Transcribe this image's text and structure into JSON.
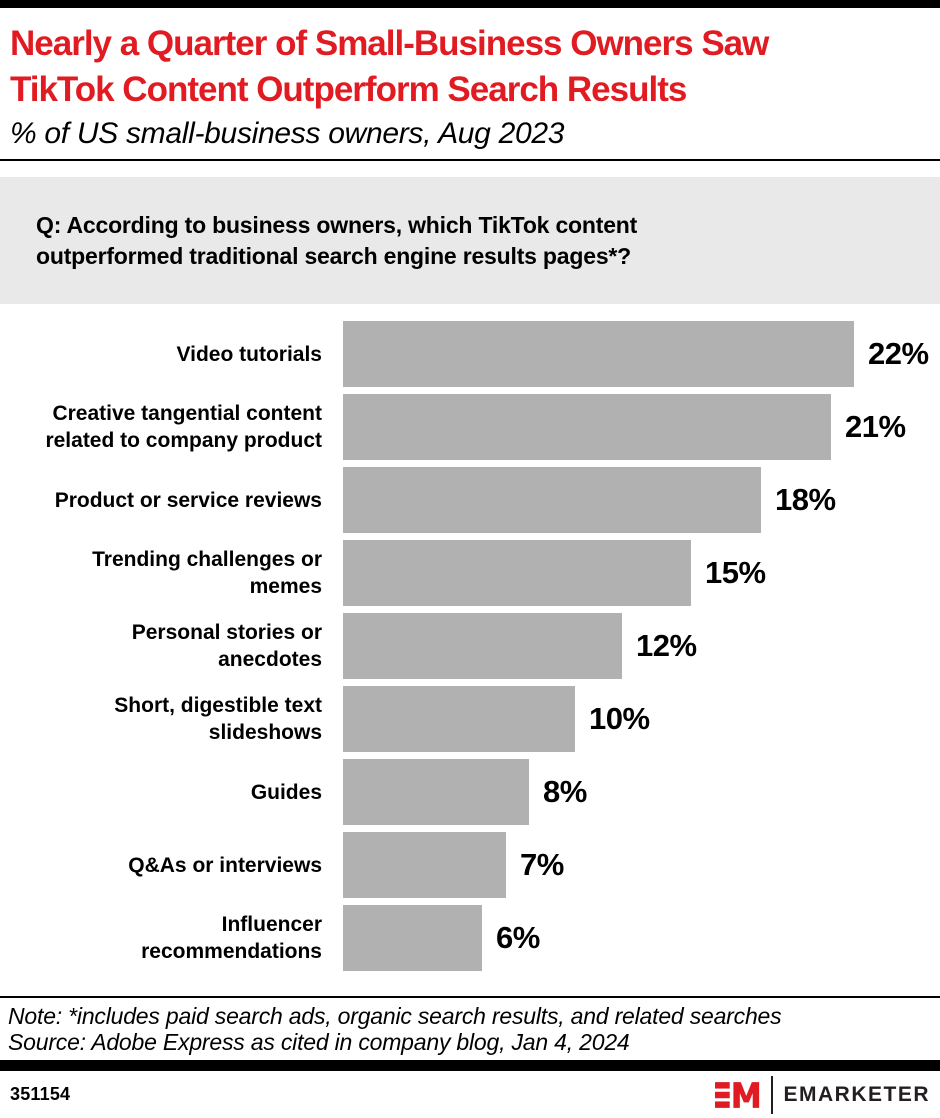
{
  "header": {
    "title_lines": [
      "Nearly a Quarter of Small-Business Owners Saw",
      "TikTok Content Outperform Search Results"
    ],
    "subtitle": "% of US small-business owners, Aug 2023"
  },
  "question": {
    "lines": [
      "Q: According to business owners, which TikTok content",
      "outperformed traditional search engine results pages*?"
    ]
  },
  "chart_data": {
    "type": "bar",
    "orientation": "horizontal",
    "categories": [
      "Video tutorials",
      "Creative tangential content\nrelated to company product",
      "Product or service reviews",
      "Trending challenges or\nmemes",
      "Personal stories or\nanecdotes",
      "Short, digestible text\nslideshows",
      "Guides",
      "Q&As or interviews",
      "Influencer\nrecommendations"
    ],
    "values": [
      22,
      21,
      18,
      15,
      12,
      10,
      8,
      7,
      6
    ],
    "value_labels": [
      "22%",
      "21%",
      "18%",
      "15%",
      "12%",
      "10%",
      "8%",
      "7%",
      "6%"
    ],
    "unit": "%",
    "xlim": [
      0,
      22
    ],
    "bar_color": "#b1b1b1",
    "grid": false,
    "legend": false
  },
  "notes": {
    "note": "Note: *includes paid search ads, organic search results, and related searches",
    "source": "Source: Adobe Express as cited in company blog, Jan 4, 2024"
  },
  "footer": {
    "chart_id": "351154",
    "brand": "EMARKETER",
    "logo_mark": "EM-monogram",
    "accent_color": "#e11b22"
  }
}
